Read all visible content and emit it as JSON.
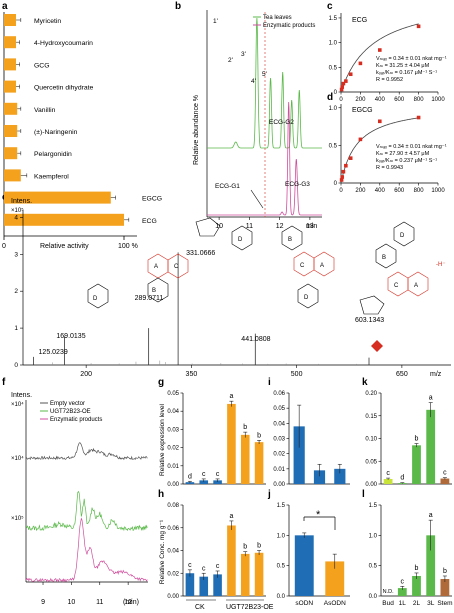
{
  "panel_labels": [
    "a",
    "b",
    "c",
    "d",
    "e",
    "f",
    "g",
    "h",
    "i",
    "j",
    "k",
    "l"
  ],
  "colors": {
    "orange": "#f4a11d",
    "blue": "#1f6db5",
    "green": "#5bb94a",
    "lightgreen": "#c8e33a",
    "brown": "#b06a3a",
    "pink": "#d04f9e",
    "gray": "#888888",
    "red": "#d62d20"
  },
  "chart_data": [
    {
      "panel": "a",
      "type": "bar",
      "orientation": "horizontal",
      "categories": [
        "Myricetin",
        "4-Hydroxycoumarin",
        "GCG",
        "Quercetin dihydrate",
        "Vanillin",
        "(±)-Naringenin",
        "Pelargonidin",
        "Kaempferol",
        "EGCG",
        "ECG"
      ],
      "values": [
        10,
        10,
        10,
        10,
        11,
        11,
        11,
        14,
        89,
        100
      ],
      "errors": [
        4,
        3,
        3,
        3,
        3,
        3,
        3,
        5,
        4,
        4
      ],
      "xlabel": "Relative activity",
      "tick_labels": [
        "0",
        "",
        "100 %"
      ],
      "xlim": [
        0,
        110
      ]
    },
    {
      "panel": "b",
      "type": "line",
      "ylabel": "Relative abundance %",
      "xlabel": "min",
      "x_ticks": [
        "10",
        "11",
        "12",
        "13"
      ],
      "xlim": [
        9.6,
        13.4
      ],
      "series": [
        {
          "name": "Tea leaves",
          "peaks": [
            {
              "label": "1'",
              "x": 11.25
            },
            {
              "label": "2'",
              "x": 11.7
            },
            {
              "label": "3'",
              "x": 12.1
            },
            {
              "label": "4'",
              "x": 12.4
            },
            {
              "label": "5'",
              "x": 12.65
            }
          ]
        },
        {
          "name": "Enzymatic products",
          "peaks": [
            {
              "label": "ECG-G2",
              "x": 12.3
            },
            {
              "label": "ECG-G3",
              "x": 12.55
            }
          ]
        }
      ],
      "annotations": [
        "1'",
        "2'",
        "3'",
        "4'",
        "5'",
        "ECG-G1",
        "ECG-G2",
        "ECG-G3"
      ]
    },
    {
      "panel": "c",
      "type": "scatter",
      "title": "ECG",
      "x": [
        6.25,
        12.5,
        25,
        50,
        100,
        200,
        400,
        800
      ],
      "y": [
        0.05,
        0.1,
        0.17,
        0.22,
        0.36,
        0.58,
        0.85,
        1.33
      ],
      "xlim": [
        0,
        1000
      ],
      "ylim": [
        0,
        1.6
      ],
      "x_ticks": [
        "0",
        "200",
        "400",
        "600",
        "800",
        "1000"
      ],
      "y_ticks": [
        "0",
        "0.5",
        "1.0",
        "1.5"
      ],
      "stats": [
        "Vₘₐₓ = 0.34 ± 0.01 nkat mg⁻¹",
        "Kₘ = 31.25 ± 4.04 μM",
        "kₒₐₜ/Kₘ = 0.167 μM⁻¹ S⁻¹",
        "R = 0.9952"
      ]
    },
    {
      "panel": "d",
      "type": "scatter",
      "title": "EGCG",
      "x": [
        6.25,
        12.5,
        25,
        50,
        100,
        200,
        400,
        800
      ],
      "y": [
        0.04,
        0.08,
        0.15,
        0.23,
        0.33,
        0.58,
        0.82,
        0.87
      ],
      "xlim": [
        0,
        1000
      ],
      "ylim": [
        0,
        1.05
      ],
      "x_ticks": [
        "0",
        "200",
        "400",
        "600",
        "800",
        "1000"
      ],
      "y_ticks": [
        "0",
        "0.5",
        "1.0"
      ],
      "stats": [
        "Vₘₐₓ = 0.34 ± 0.01 nkat mg⁻¹",
        "Kₘ = 27.90 ± 4.57 μM",
        "kₒₐₜ/Kₘ = 0.237 μM⁻¹ S⁻¹",
        "R = 0.9943"
      ]
    },
    {
      "panel": "e",
      "type": "bar",
      "subtype": "mass-spectrum",
      "ylabel": "Intens.",
      "y_exp": "×10⁵",
      "y_ticks": [
        "0",
        "1",
        "2",
        "3",
        "4"
      ],
      "xlabel": "m/z",
      "x_ticks": [
        "200",
        "350",
        "500",
        "650"
      ],
      "xlim": [
        110,
        720
      ],
      "ylim": [
        0,
        4.2
      ],
      "peaks": [
        {
          "mz": 125.0239,
          "i": 0.22,
          "label": "125.0239"
        },
        {
          "mz": 169.0135,
          "i": 0.78,
          "label": "169.0135"
        },
        {
          "mz": 289.0711,
          "i": 1.0,
          "label": "289.0711"
        },
        {
          "mz": 331.0666,
          "i": 3.05,
          "label": "331.0666"
        },
        {
          "mz": 441.0808,
          "i": 0.85,
          "label": "441.0808"
        },
        {
          "mz": 603.1343,
          "i": 0.2,
          "label": "603.1343"
        }
      ],
      "annotation": "-H⁻"
    },
    {
      "panel": "f",
      "type": "line",
      "ylabel": "Intens.",
      "xlabel": "(min)",
      "x_ticks": [
        "9",
        "10",
        "11",
        "12"
      ],
      "xlim": [
        8.4,
        12.7
      ],
      "series": [
        {
          "name": "Empty vector",
          "scale": "×10⁴"
        },
        {
          "name": "UGT72B23-OE",
          "scale": "×10⁴"
        },
        {
          "name": "Enzymatic products",
          "scale": "×10⁵"
        }
      ]
    },
    {
      "panel": "g",
      "type": "bar",
      "ylabel": "Relative expression level",
      "values": [
        0.001,
        0.002,
        0.002,
        0.044,
        0.027,
        0.023
      ],
      "errors": [
        0.0005,
        0.0008,
        0.0008,
        0.0015,
        0.0015,
        0.001
      ],
      "letters": [
        "d",
        "c",
        "c",
        "a",
        "b",
        "b"
      ],
      "y_ticks": [
        "0.00",
        "0.01",
        "0.02",
        "0.03",
        "0.04",
        "0.05"
      ],
      "ylim": [
        0,
        0.05
      ]
    },
    {
      "panel": "h",
      "type": "bar",
      "ylabel": "Relative Conc. mg g⁻¹",
      "values": [
        0.02,
        0.017,
        0.019,
        0.062,
        0.037,
        0.038
      ],
      "errors": [
        0.003,
        0.003,
        0.003,
        0.004,
        0.002,
        0.002
      ],
      "letters": [
        "c",
        "c",
        "c",
        "a",
        "b",
        "b"
      ],
      "y_ticks": [
        "0.00",
        "0.02",
        "0.04",
        "0.06",
        "0.08"
      ],
      "ylim": [
        0,
        0.08
      ],
      "group_labels": [
        "CK",
        "UGT72B23-OE"
      ]
    },
    {
      "panel": "i",
      "type": "bar",
      "values": [
        0.038,
        0.009,
        0.01
      ],
      "errors": [
        0.014,
        0.004,
        0.003
      ],
      "bar_colors": [
        "blue",
        "blue",
        "blue"
      ],
      "y_ticks": [
        "0.00",
        "0.01",
        "0.02",
        "0.03",
        "0.04",
        "0.05",
        "0.06"
      ],
      "ylim": [
        0,
        0.06
      ]
    },
    {
      "panel": "j",
      "type": "bar",
      "categories": [
        "sODN",
        "AsODN"
      ],
      "values": [
        1.0,
        0.57
      ],
      "errors": [
        0.04,
        0.12
      ],
      "bar_colors": [
        "blue",
        "orange"
      ],
      "annotation": "*",
      "y_ticks": [
        "0.0",
        "0.5",
        "1.0",
        "1.5"
      ],
      "ylim": [
        0,
        1.5
      ]
    },
    {
      "panel": "k",
      "type": "bar",
      "values": [
        0.011,
        0.002,
        0.085,
        0.163,
        0.012
      ],
      "errors": [
        0.002,
        0.001,
        0.004,
        0.016,
        0.002
      ],
      "letters": [
        "c",
        "d",
        "b",
        "a",
        "c"
      ],
      "bar_colors": [
        "lightgreen",
        "green",
        "green",
        "green",
        "brown"
      ],
      "y_ticks": [
        "0.00",
        "0.05",
        "0.10",
        "0.15",
        "0.20"
      ],
      "ylim": [
        0,
        0.2
      ]
    },
    {
      "panel": "l",
      "type": "bar",
      "categories": [
        "Bud",
        "1L",
        "2L",
        "3L",
        "Stem"
      ],
      "values": [
        0,
        0.13,
        0.33,
        1.0,
        0.28
      ],
      "errors": [
        0,
        0.03,
        0.05,
        0.25,
        0.05
      ],
      "letters": [
        "N.D.",
        "c",
        "b",
        "a",
        "b"
      ],
      "bar_colors": [
        "lightgreen",
        "green",
        "green",
        "green",
        "brown"
      ],
      "y_ticks": [
        "0.0",
        "0.5",
        "1.0",
        "1.5"
      ],
      "ylim": [
        0,
        1.5
      ]
    }
  ]
}
